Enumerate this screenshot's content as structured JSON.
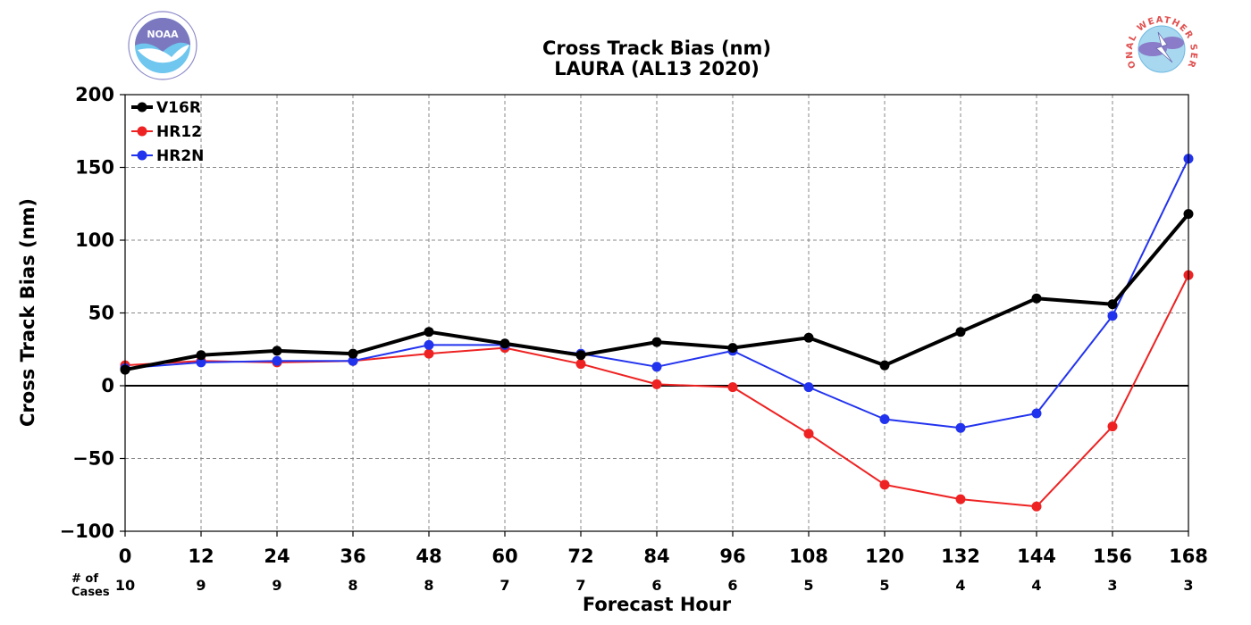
{
  "chart_data": {
    "type": "line",
    "title": "Cross Track Bias (nm)",
    "subtitle": "LAURA (AL13 2020)",
    "xlabel": "Forecast Hour",
    "ylabel": "Cross Track Bias (nm)",
    "xlim": [
      0,
      168
    ],
    "ylim": [
      -100,
      200
    ],
    "x": [
      0,
      12,
      24,
      36,
      48,
      60,
      72,
      84,
      96,
      108,
      120,
      132,
      144,
      156,
      168
    ],
    "yticks": [
      200,
      150,
      100,
      50,
      0,
      -50,
      -100
    ],
    "ytick_labels": [
      "200",
      "150",
      "100",
      "50",
      "0",
      "−50",
      "−100"
    ],
    "grid": true,
    "legend_position": "top-left",
    "series": [
      {
        "name": "V16R",
        "color": "#000000",
        "values": [
          11,
          21,
          24,
          22,
          37,
          29,
          21,
          30,
          26,
          33,
          14,
          37,
          60,
          56,
          118
        ]
      },
      {
        "name": "HR12",
        "color": "#ee2222",
        "values": [
          14,
          17,
          16,
          17,
          22,
          26,
          15,
          1,
          -1,
          -33,
          -68,
          -78,
          -83,
          -28,
          76
        ]
      },
      {
        "name": "HR2N",
        "color": "#2233ee",
        "values": [
          12,
          16,
          17,
          17,
          28,
          28,
          22,
          13,
          24,
          -1,
          -23,
          -29,
          -19,
          48,
          156
        ]
      }
    ],
    "cases_header": "# of Cases",
    "cases": [
      10,
      9,
      9,
      8,
      8,
      7,
      7,
      6,
      6,
      5,
      5,
      4,
      4,
      3,
      3
    ]
  },
  "logos": {
    "left": "NOAA",
    "right": "NATIONAL WEATHER SERVICE"
  }
}
